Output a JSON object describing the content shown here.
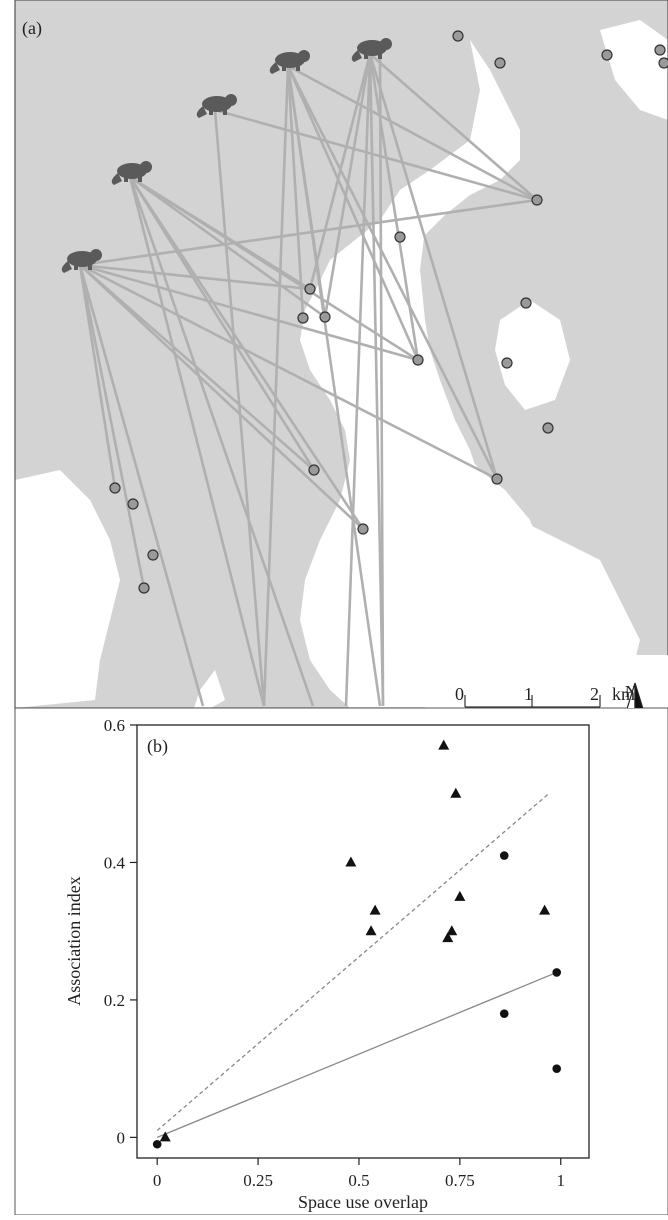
{
  "panel_a": {
    "label": "(a)",
    "north_label": "N",
    "scale": {
      "ticks": [
        "0",
        "1",
        "2"
      ],
      "unit": "km"
    },
    "colors": {
      "land": "#d3d3d3",
      "water": "#ffffff",
      "line": "#b0b0b0",
      "site": "#9a9a9a",
      "animal": "#5a5a5a"
    },
    "animal_icons": [
      "otter-icon",
      "otter-icon",
      "otter-icon",
      "otter-icon",
      "otter-icon"
    ]
  },
  "chart_data": {
    "type": "scatter",
    "panel_label": "(b)",
    "xlabel": "Space use overlap",
    "ylabel": "Association index",
    "xlim": [
      -0.05,
      1.07
    ],
    "ylim": [
      -0.03,
      0.6
    ],
    "xticks": [
      "0",
      "0.25",
      "0.5",
      "0.75",
      "1"
    ],
    "yticks": [
      "0",
      "0.2",
      "0.4",
      "0.6"
    ],
    "series": [
      {
        "marker": "triangle",
        "points": [
          [
            0.02,
            0.0
          ],
          [
            0.48,
            0.4
          ],
          [
            0.53,
            0.3
          ],
          [
            0.54,
            0.33
          ],
          [
            0.71,
            0.57
          ],
          [
            0.72,
            0.29
          ],
          [
            0.73,
            0.3
          ],
          [
            0.74,
            0.5
          ],
          [
            0.75,
            0.35
          ],
          [
            0.96,
            0.33
          ]
        ],
        "fit": {
          "style": "dashed",
          "from": [
            0.0,
            0.01
          ],
          "to": [
            0.97,
            0.5
          ]
        }
      },
      {
        "marker": "circle",
        "points": [
          [
            0.0,
            -0.01
          ],
          [
            0.86,
            0.41
          ],
          [
            0.86,
            0.18
          ],
          [
            0.99,
            0.24
          ],
          [
            0.99,
            0.1
          ]
        ],
        "fit": {
          "style": "solid",
          "from": [
            0.0,
            0.0
          ],
          "to": [
            0.99,
            0.24
          ]
        }
      }
    ],
    "colors": {
      "marker": "#111111",
      "dashed_fit": "#888888",
      "solid_fit": "#888888"
    }
  }
}
